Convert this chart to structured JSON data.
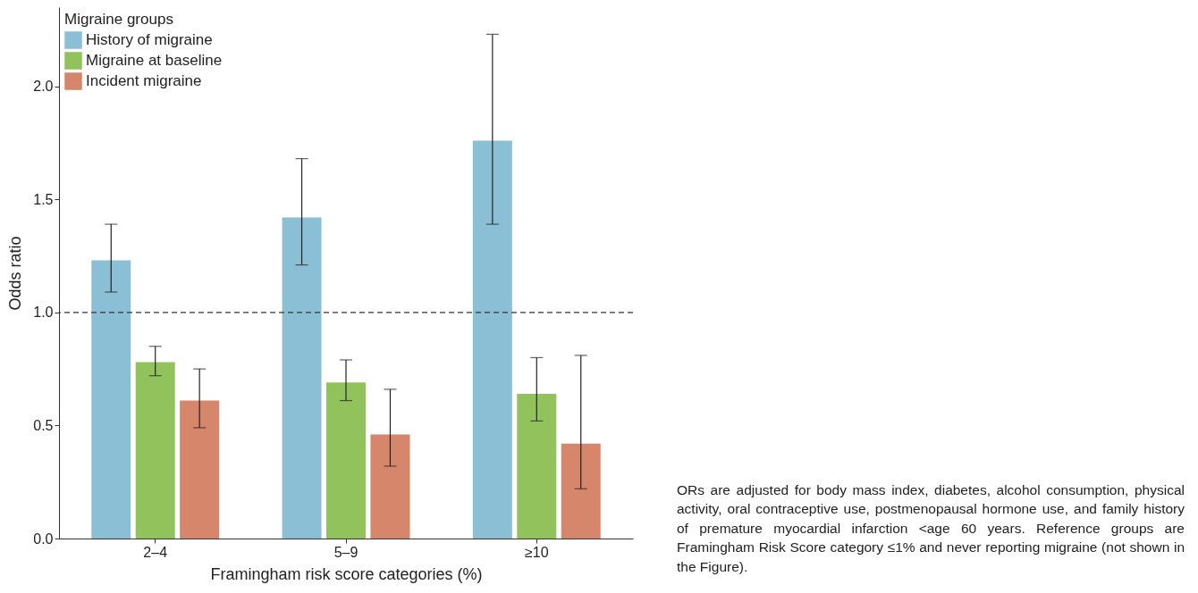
{
  "chart_data": {
    "type": "bar",
    "xlabel": "Framingham risk score categories (%)",
    "ylabel": "Odds ratio",
    "legend_title": "Migraine groups",
    "categories": [
      "2–4",
      "5–9",
      "≥10"
    ],
    "series": [
      {
        "name": "History of migraine",
        "color": "#8bbfd6",
        "values": [
          1.23,
          1.42,
          1.76
        ],
        "errors": [
          [
            1.09,
            1.39
          ],
          [
            1.21,
            1.68
          ],
          [
            1.39,
            2.23
          ]
        ]
      },
      {
        "name": "Migraine at baseline",
        "color": "#92c25c",
        "values": [
          0.78,
          0.69,
          0.64
        ],
        "errors": [
          [
            0.72,
            0.85
          ],
          [
            0.61,
            0.79
          ],
          [
            0.52,
            0.8
          ]
        ]
      },
      {
        "name": "Incident migraine",
        "color": "#d6866a",
        "values": [
          0.61,
          0.46,
          0.42
        ],
        "errors": [
          [
            0.49,
            0.75
          ],
          [
            0.32,
            0.66
          ],
          [
            0.22,
            0.81
          ]
        ]
      }
    ],
    "ylim": [
      0,
      2.35
    ],
    "yticks": [
      {
        "value": 0,
        "label": "0.0"
      },
      0.5,
      {
        "value": 1,
        "label": "1.0"
      },
      1.5,
      {
        "value": 2,
        "label": "2.0"
      }
    ],
    "ref_lines": [
      {
        "axis": "y",
        "value": 1,
        "line_style": "dashed",
        "color": "#333333"
      }
    ],
    "legend": "top left",
    "grid": false,
    "annotations": [
      "ORs are adjusted for body mass index, diabetes, alcohol consumption, physical activity, oral contraceptive use, postmenopausal hormone use, and family history of premature myocardial infarction <age 60 years. Reference groups are Framingham Risk Score category ≤1% and never reporting migraine (not shown in the Figure)."
    ]
  }
}
